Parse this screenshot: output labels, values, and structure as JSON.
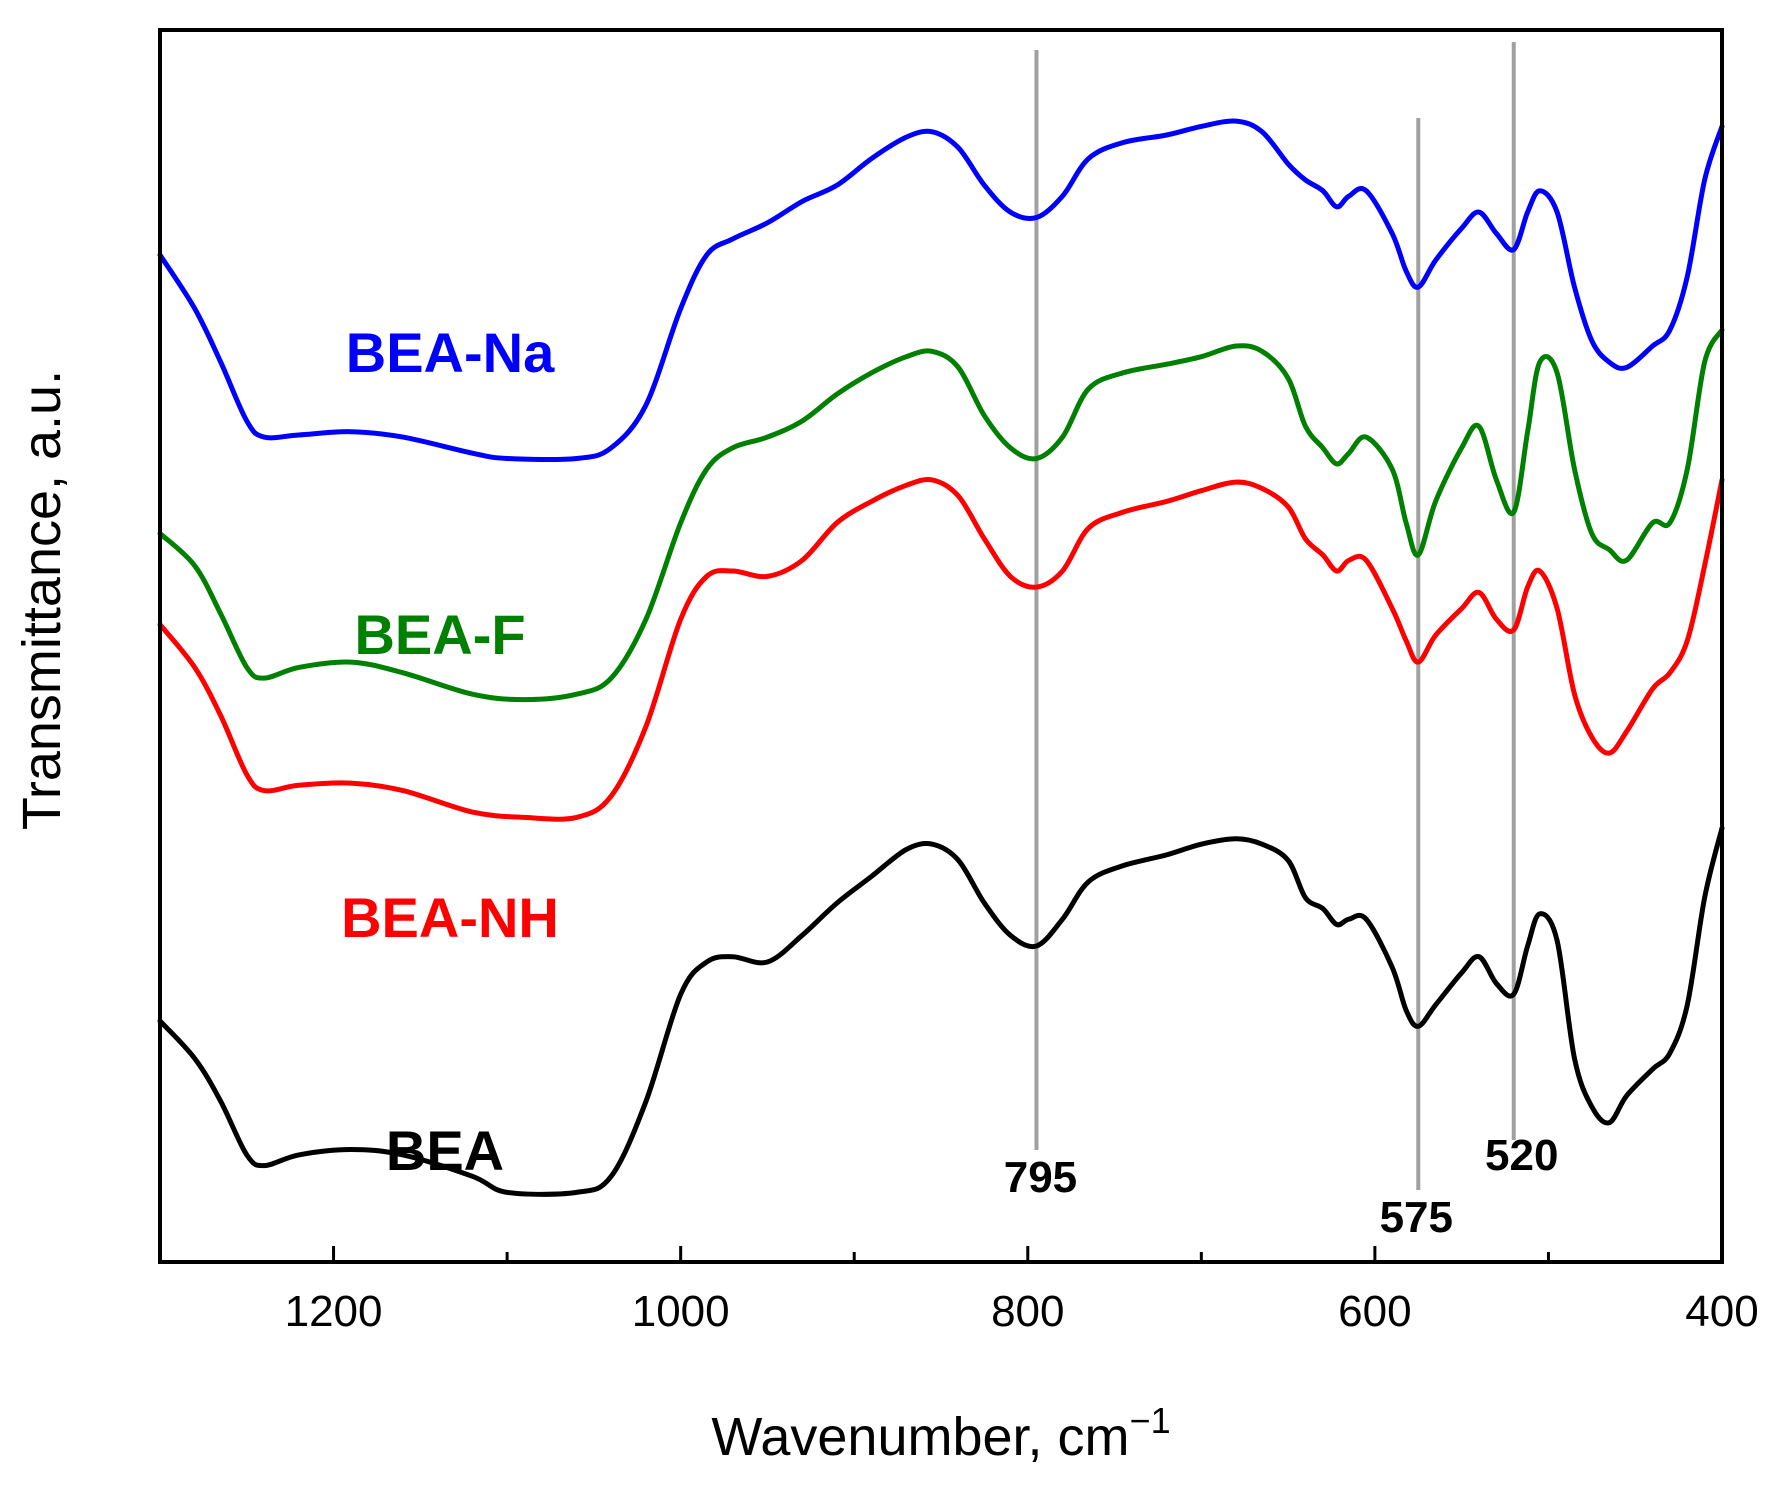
{
  "chart_data": {
    "type": "line",
    "xlabel": "Wavenumber, cm",
    "xlabel_superscript": "−1",
    "ylabel": "Transmittance, a.u.",
    "xlim": [
      1300,
      400
    ],
    "x_reversed": true,
    "x_ticks": [
      1200,
      1000,
      800,
      600,
      400
    ],
    "x_minor_ticks": [
      1100,
      900,
      700,
      500
    ],
    "y_ticks": [],
    "grid": false,
    "reference_lines": [
      {
        "x": 795,
        "label": "795"
      },
      {
        "x": 575,
        "label": "575"
      },
      {
        "x": 520,
        "label": "520"
      }
    ],
    "series": [
      {
        "name": "BEA-Na",
        "color": "#0000ff",
        "points": [
          [
            1300,
            8.9
          ],
          [
            1280,
            8.4
          ],
          [
            1265,
            7.9
          ],
          [
            1250,
            7.35
          ],
          [
            1240,
            7.2
          ],
          [
            1220,
            7.22
          ],
          [
            1190,
            7.25
          ],
          [
            1160,
            7.2
          ],
          [
            1120,
            7.05
          ],
          [
            1100,
            7.0
          ],
          [
            1060,
            7.0
          ],
          [
            1040,
            7.1
          ],
          [
            1020,
            7.5
          ],
          [
            1000,
            8.4
          ],
          [
            985,
            8.9
          ],
          [
            970,
            9.05
          ],
          [
            950,
            9.2
          ],
          [
            930,
            9.4
          ],
          [
            910,
            9.55
          ],
          [
            890,
            9.8
          ],
          [
            870,
            10.0
          ],
          [
            855,
            10.05
          ],
          [
            840,
            9.9
          ],
          [
            825,
            9.55
          ],
          [
            810,
            9.3
          ],
          [
            795,
            9.25
          ],
          [
            780,
            9.45
          ],
          [
            765,
            9.8
          ],
          [
            745,
            9.95
          ],
          [
            720,
            10.02
          ],
          [
            700,
            10.1
          ],
          [
            680,
            10.15
          ],
          [
            665,
            10.05
          ],
          [
            650,
            9.75
          ],
          [
            640,
            9.6
          ],
          [
            630,
            9.5
          ],
          [
            622,
            9.35
          ],
          [
            615,
            9.45
          ],
          [
            605,
            9.5
          ],
          [
            590,
            9.1
          ],
          [
            582,
            8.75
          ],
          [
            575,
            8.6
          ],
          [
            565,
            8.85
          ],
          [
            550,
            9.15
          ],
          [
            540,
            9.3
          ],
          [
            530,
            9.1
          ],
          [
            520,
            8.95
          ],
          [
            512,
            9.3
          ],
          [
            505,
            9.5
          ],
          [
            495,
            9.3
          ],
          [
            485,
            8.6
          ],
          [
            475,
            8.1
          ],
          [
            465,
            7.9
          ],
          [
            455,
            7.85
          ],
          [
            440,
            8.05
          ],
          [
            430,
            8.2
          ],
          [
            420,
            8.7
          ],
          [
            410,
            9.6
          ],
          [
            400,
            10.1
          ]
        ]
      },
      {
        "name": "BEA-F",
        "color": "#008000",
        "points": [
          [
            1300,
            6.3
          ],
          [
            1280,
            6.0
          ],
          [
            1265,
            5.55
          ],
          [
            1250,
            5.05
          ],
          [
            1240,
            4.95
          ],
          [
            1220,
            5.05
          ],
          [
            1190,
            5.1
          ],
          [
            1160,
            5.0
          ],
          [
            1120,
            4.8
          ],
          [
            1090,
            4.75
          ],
          [
            1060,
            4.8
          ],
          [
            1040,
            4.95
          ],
          [
            1020,
            5.5
          ],
          [
            1000,
            6.4
          ],
          [
            985,
            6.9
          ],
          [
            970,
            7.1
          ],
          [
            950,
            7.2
          ],
          [
            930,
            7.35
          ],
          [
            910,
            7.6
          ],
          [
            890,
            7.8
          ],
          [
            870,
            7.95
          ],
          [
            855,
            8.0
          ],
          [
            840,
            7.85
          ],
          [
            825,
            7.4
          ],
          [
            810,
            7.1
          ],
          [
            795,
            7.0
          ],
          [
            780,
            7.2
          ],
          [
            765,
            7.65
          ],
          [
            745,
            7.8
          ],
          [
            720,
            7.88
          ],
          [
            700,
            7.95
          ],
          [
            680,
            8.05
          ],
          [
            665,
            8.0
          ],
          [
            650,
            7.75
          ],
          [
            640,
            7.3
          ],
          [
            630,
            7.1
          ],
          [
            622,
            6.95
          ],
          [
            615,
            7.05
          ],
          [
            605,
            7.2
          ],
          [
            590,
            6.9
          ],
          [
            582,
            6.4
          ],
          [
            575,
            6.1
          ],
          [
            565,
            6.6
          ],
          [
            550,
            7.1
          ],
          [
            540,
            7.3
          ],
          [
            530,
            6.8
          ],
          [
            520,
            6.5
          ],
          [
            512,
            7.25
          ],
          [
            505,
            7.9
          ],
          [
            495,
            7.8
          ],
          [
            485,
            6.9
          ],
          [
            475,
            6.3
          ],
          [
            465,
            6.15
          ],
          [
            455,
            6.05
          ],
          [
            440,
            6.4
          ],
          [
            430,
            6.4
          ],
          [
            420,
            6.9
          ],
          [
            410,
            7.9
          ],
          [
            400,
            8.2
          ]
        ]
      },
      {
        "name": "BEA-NH",
        "color": "#ff0000",
        "points": [
          [
            1300,
            5.45
          ],
          [
            1280,
            5.05
          ],
          [
            1265,
            4.6
          ],
          [
            1250,
            4.05
          ],
          [
            1240,
            3.9
          ],
          [
            1220,
            3.95
          ],
          [
            1190,
            3.97
          ],
          [
            1160,
            3.9
          ],
          [
            1120,
            3.7
          ],
          [
            1090,
            3.65
          ],
          [
            1060,
            3.65
          ],
          [
            1040,
            3.85
          ],
          [
            1020,
            4.5
          ],
          [
            1000,
            5.5
          ],
          [
            985,
            5.9
          ],
          [
            970,
            5.95
          ],
          [
            950,
            5.9
          ],
          [
            930,
            6.05
          ],
          [
            910,
            6.4
          ],
          [
            890,
            6.6
          ],
          [
            870,
            6.75
          ],
          [
            855,
            6.8
          ],
          [
            840,
            6.65
          ],
          [
            825,
            6.25
          ],
          [
            810,
            5.9
          ],
          [
            795,
            5.8
          ],
          [
            780,
            5.95
          ],
          [
            765,
            6.35
          ],
          [
            745,
            6.5
          ],
          [
            720,
            6.6
          ],
          [
            700,
            6.7
          ],
          [
            680,
            6.78
          ],
          [
            665,
            6.72
          ],
          [
            650,
            6.55
          ],
          [
            640,
            6.25
          ],
          [
            630,
            6.1
          ],
          [
            622,
            5.95
          ],
          [
            615,
            6.05
          ],
          [
            605,
            6.05
          ],
          [
            590,
            5.6
          ],
          [
            582,
            5.3
          ],
          [
            575,
            5.1
          ],
          [
            565,
            5.35
          ],
          [
            550,
            5.6
          ],
          [
            540,
            5.75
          ],
          [
            530,
            5.5
          ],
          [
            520,
            5.4
          ],
          [
            512,
            5.8
          ],
          [
            505,
            5.95
          ],
          [
            495,
            5.6
          ],
          [
            485,
            4.8
          ],
          [
            475,
            4.4
          ],
          [
            465,
            4.25
          ],
          [
            455,
            4.45
          ],
          [
            440,
            4.85
          ],
          [
            430,
            5.0
          ],
          [
            420,
            5.3
          ],
          [
            410,
            6.0
          ],
          [
            400,
            6.8
          ]
        ]
      },
      {
        "name": "BEA",
        "color": "#000000",
        "points": [
          [
            1300,
            1.75
          ],
          [
            1280,
            1.4
          ],
          [
            1265,
            1.0
          ],
          [
            1250,
            0.5
          ],
          [
            1240,
            0.4
          ],
          [
            1220,
            0.5
          ],
          [
            1190,
            0.55
          ],
          [
            1160,
            0.5
          ],
          [
            1120,
            0.3
          ],
          [
            1100,
            0.15
          ],
          [
            1060,
            0.15
          ],
          [
            1040,
            0.3
          ],
          [
            1020,
            1.0
          ],
          [
            1000,
            2.0
          ],
          [
            985,
            2.3
          ],
          [
            970,
            2.35
          ],
          [
            950,
            2.3
          ],
          [
            930,
            2.55
          ],
          [
            910,
            2.85
          ],
          [
            890,
            3.1
          ],
          [
            870,
            3.35
          ],
          [
            855,
            3.4
          ],
          [
            840,
            3.25
          ],
          [
            825,
            2.85
          ],
          [
            810,
            2.55
          ],
          [
            795,
            2.45
          ],
          [
            780,
            2.7
          ],
          [
            765,
            3.05
          ],
          [
            745,
            3.2
          ],
          [
            720,
            3.3
          ],
          [
            700,
            3.4
          ],
          [
            680,
            3.45
          ],
          [
            665,
            3.4
          ],
          [
            650,
            3.25
          ],
          [
            640,
            2.9
          ],
          [
            630,
            2.8
          ],
          [
            622,
            2.65
          ],
          [
            615,
            2.7
          ],
          [
            605,
            2.7
          ],
          [
            590,
            2.25
          ],
          [
            582,
            1.85
          ],
          [
            575,
            1.7
          ],
          [
            565,
            1.9
          ],
          [
            550,
            2.2
          ],
          [
            540,
            2.35
          ],
          [
            530,
            2.1
          ],
          [
            520,
            2.0
          ],
          [
            512,
            2.45
          ],
          [
            505,
            2.75
          ],
          [
            495,
            2.5
          ],
          [
            485,
            1.4
          ],
          [
            475,
            0.95
          ],
          [
            465,
            0.8
          ],
          [
            455,
            1.05
          ],
          [
            440,
            1.3
          ],
          [
            430,
            1.45
          ],
          [
            420,
            1.9
          ],
          [
            410,
            2.9
          ],
          [
            400,
            3.55
          ]
        ]
      }
    ],
    "series_labels_visible": [
      "BEA-Na",
      "BEA-F",
      "BEA-NH",
      "BEA"
    ]
  }
}
